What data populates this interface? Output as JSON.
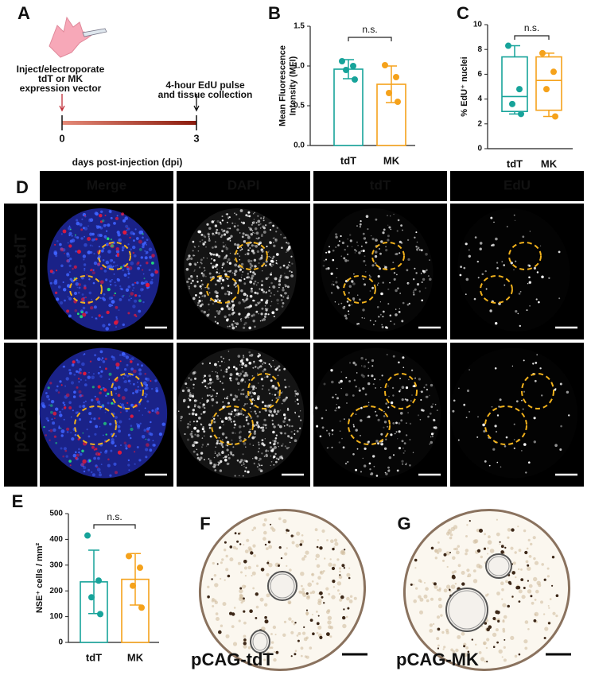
{
  "panel_labels": [
    "A",
    "B",
    "C",
    "D",
    "E",
    "F",
    "G"
  ],
  "timeline": {
    "step1": [
      "Inject/electroporate",
      "tdT or MK",
      "expression vector"
    ],
    "step2": [
      "4-hour EdU pulse",
      "and tissue collection"
    ],
    "xlim": [
      0,
      3
    ],
    "xticks": [
      0,
      3
    ],
    "xlabel": "days post-injection (dpi)"
  },
  "chart_data": [
    {
      "type": "bar",
      "ylabel": [
        "Mean Fluorescence",
        "Intensity (MFI)"
      ],
      "categories": [
        "tdT",
        "MK"
      ],
      "values": [
        0.96,
        0.77
      ],
      "errors": [
        0.12,
        0.23
      ],
      "points": [
        [
          1.06,
          1.0,
          0.95,
          0.83
        ],
        [
          1.01,
          0.86,
          0.66,
          0.55
        ]
      ],
      "colors": [
        "#17a39a",
        "#f5a21b"
      ],
      "ylim": [
        0,
        1.5
      ],
      "yticks": [
        {
          "value": 0,
          "label": "0.0"
        },
        {
          "value": 0.5,
          "label": "0.5"
        },
        {
          "value": 1,
          "label": "1.0"
        },
        {
          "value": 1.5,
          "label": "1.5"
        }
      ],
      "annotation": "n.s."
    },
    {
      "type": "box",
      "ylabel": [
        "% EdU⁺ nuclei"
      ],
      "categories": [
        "tdT",
        "MK"
      ],
      "boxes": [
        {
          "min": 2.8,
          "q1": 3.0,
          "median": 4.2,
          "q3": 7.4,
          "max": 8.3
        },
        {
          "min": 2.6,
          "q1": 3.1,
          "median": 5.5,
          "q3": 7.4,
          "max": 7.7
        }
      ],
      "points": [
        [
          8.3,
          4.8,
          3.6,
          2.8
        ],
        [
          7.7,
          6.2,
          4.8,
          2.6
        ]
      ],
      "colors": [
        "#17a39a",
        "#f5a21b"
      ],
      "ylim": [
        0,
        10
      ],
      "yticks": [
        0,
        2,
        4,
        6,
        8,
        10
      ],
      "annotation": "n.s."
    },
    {
      "type": "bar",
      "ylabel": [
        "NSE⁺ cells / mm²"
      ],
      "categories": [
        "tdT",
        "MK"
      ],
      "values": [
        235,
        245
      ],
      "errors": [
        123,
        100
      ],
      "points": [
        [
          415,
          240,
          175,
          110
        ],
        [
          335,
          290,
          220,
          135
        ]
      ],
      "colors": [
        "#17a39a",
        "#f5a21b"
      ],
      "ylim": [
        0,
        500
      ],
      "yticks": [
        0,
        100,
        200,
        300,
        400,
        500
      ],
      "annotation": "n.s."
    }
  ],
  "images": {
    "columns": [
      "Merge",
      "DAPI",
      "tdT",
      "EdU"
    ],
    "rows": [
      "pCAG-tdT",
      "pCAG-MK"
    ]
  },
  "stains": {
    "labels": [
      "pCAG-tdT",
      "pCAG-MK"
    ]
  }
}
